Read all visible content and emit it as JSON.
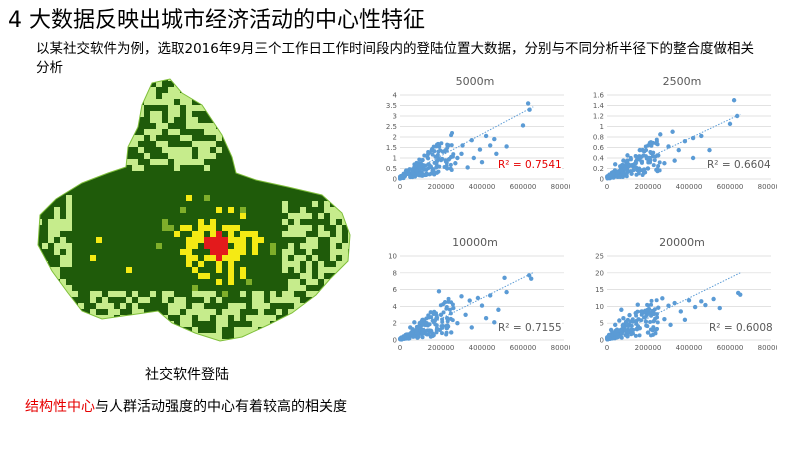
{
  "slide": {
    "title": "4 大数据反映出城市经济活动的中心性特征",
    "subtitle": "以某社交软件为例，选取2016年9月三个工作日工作时间段内的登陆位置大数据，分别与不同分析半径下的整合度做相关分析",
    "map_caption": "社交软件登陆",
    "conclusion_highlight": "结构性中心",
    "conclusion_rest": "与人群活动强度的中心有着较高的相关度"
  },
  "map": {
    "colors": {
      "dark_green": "#1f5b0a",
      "light_green": "#c6ec8c",
      "yellow": "#f5ea14",
      "red": "#e31a1c"
    }
  },
  "chart_data": [
    {
      "type": "scatter",
      "title": "5000m",
      "r2_label": "R² = 0.7541",
      "r2_color": "#e60000",
      "xlim": [
        0,
        800000
      ],
      "ylim": [
        0,
        4
      ],
      "xticks": [
        "0",
        "200000",
        "400000",
        "600000",
        "800000"
      ],
      "yticks": [
        "0",
        "0.5",
        "1",
        "1.5",
        "2",
        "2.5",
        "3",
        "3.5",
        "4"
      ],
      "trend": {
        "slope": 5.2e-06,
        "intercept": 0.06
      },
      "points": [
        [
          625000,
          3.6
        ],
        [
          632000,
          3.3
        ],
        [
          600000,
          2.55
        ],
        [
          420000,
          2.05
        ],
        [
          460000,
          1.9
        ],
        [
          305000,
          1.6
        ],
        [
          390000,
          1.4
        ],
        [
          470000,
          1.2
        ],
        [
          250000,
          1.05
        ],
        [
          360000,
          1.0
        ],
        [
          180000,
          0.85
        ],
        [
          520000,
          1.55
        ],
        [
          270000,
          0.75
        ],
        [
          150000,
          0.6
        ],
        [
          100000,
          0.5
        ],
        [
          80000,
          0.4
        ],
        [
          60000,
          0.3
        ],
        [
          40000,
          0.25
        ],
        [
          20000,
          0.15
        ],
        [
          10000,
          0.1
        ],
        [
          5000,
          0.05
        ],
        [
          120000,
          0.45
        ],
        [
          200000,
          0.9
        ],
        [
          330000,
          0.55
        ],
        [
          160000,
          0.35
        ],
        [
          90000,
          0.2
        ],
        [
          230000,
          0.5
        ],
        [
          140000,
          0.7
        ],
        [
          70000,
          0.55
        ],
        [
          30000,
          0.4
        ],
        [
          50000,
          0.1
        ],
        [
          180000,
          0.3
        ],
        [
          300000,
          1.2
        ],
        [
          210000,
          1.3
        ],
        [
          110000,
          0.9
        ],
        [
          400000,
          0.8
        ],
        [
          440000,
          1.6
        ],
        [
          350000,
          1.85
        ],
        [
          280000,
          1.0
        ],
        [
          130000,
          0.25
        ]
      ]
    },
    {
      "type": "scatter",
      "title": "2500m",
      "r2_label": "R² = 0.6604",
      "r2_color": "#595959",
      "xlim": [
        0,
        800000
      ],
      "ylim": [
        0,
        1.6
      ],
      "xticks": [
        "0",
        "200000",
        "400000",
        "600000",
        "800000"
      ],
      "yticks": [
        "0",
        "0.2",
        "0.4",
        "0.6",
        "0.8",
        "1",
        "1.2",
        "1.4",
        "1.6"
      ],
      "trend": {
        "slope": 1.85e-06,
        "intercept": 0.03
      },
      "points": [
        [
          620000,
          1.5
        ],
        [
          635000,
          1.2
        ],
        [
          600000,
          1.05
        ],
        [
          460000,
          0.82
        ],
        [
          420000,
          0.78
        ],
        [
          380000,
          0.72
        ],
        [
          300000,
          0.62
        ],
        [
          350000,
          0.55
        ],
        [
          500000,
          0.55
        ],
        [
          250000,
          0.45
        ],
        [
          200000,
          0.4
        ],
        [
          170000,
          0.33
        ],
        [
          140000,
          0.3
        ],
        [
          110000,
          0.25
        ],
        [
          90000,
          0.2
        ],
        [
          70000,
          0.16
        ],
        [
          50000,
          0.12
        ],
        [
          30000,
          0.1
        ],
        [
          15000,
          0.06
        ],
        [
          5000,
          0.03
        ],
        [
          240000,
          0.68
        ],
        [
          280000,
          0.3
        ],
        [
          160000,
          0.55
        ],
        [
          120000,
          0.1
        ],
        [
          200000,
          0.2
        ],
        [
          80000,
          0.35
        ],
        [
          320000,
          0.9
        ],
        [
          260000,
          0.85
        ],
        [
          60000,
          0.05
        ],
        [
          180000,
          0.15
        ],
        [
          420000,
          0.4
        ],
        [
          330000,
          0.35
        ],
        [
          100000,
          0.45
        ],
        [
          40000,
          0.28
        ]
      ]
    },
    {
      "type": "scatter",
      "title": "10000m",
      "r2_label": "R² = 0.7155",
      "r2_color": "#595959",
      "xlim": [
        0,
        800000
      ],
      "ylim": [
        0,
        10
      ],
      "xticks": [
        "0",
        "200000",
        "400000",
        "600000",
        "800000"
      ],
      "yticks": [
        "0",
        "2",
        "4",
        "6",
        "8",
        "10"
      ],
      "trend": {
        "slope": 1.22e-05,
        "intercept": 0.1
      },
      "points": [
        [
          630000,
          7.7
        ],
        [
          640000,
          7.3
        ],
        [
          510000,
          7.4
        ],
        [
          520000,
          5.7
        ],
        [
          440000,
          5.3
        ],
        [
          380000,
          5.0
        ],
        [
          300000,
          5.2
        ],
        [
          340000,
          4.7
        ],
        [
          260000,
          3.8
        ],
        [
          480000,
          3.6
        ],
        [
          200000,
          3.0
        ],
        [
          230000,
          2.6
        ],
        [
          160000,
          2.3
        ],
        [
          130000,
          2.0
        ],
        [
          100000,
          1.6
        ],
        [
          80000,
          1.2
        ],
        [
          60000,
          0.9
        ],
        [
          40000,
          0.6
        ],
        [
          20000,
          0.3
        ],
        [
          10000,
          0.1
        ],
        [
          280000,
          2.0
        ],
        [
          180000,
          1.2
        ],
        [
          150000,
          3.3
        ],
        [
          320000,
          3.0
        ],
        [
          420000,
          2.6
        ],
        [
          110000,
          0.8
        ],
        [
          70000,
          2.1
        ],
        [
          220000,
          4.5
        ],
        [
          350000,
          1.5
        ],
        [
          250000,
          0.9
        ],
        [
          190000,
          5.8
        ],
        [
          90000,
          0.4
        ],
        [
          140000,
          0.7
        ],
        [
          400000,
          4.1
        ],
        [
          460000,
          2.1
        ],
        [
          50000,
          1.5
        ]
      ]
    },
    {
      "type": "scatter",
      "title": "20000m",
      "r2_label": "R² = 0.6008",
      "r2_color": "#595959",
      "xlim": [
        0,
        800000
      ],
      "ylim": [
        0,
        25
      ],
      "xticks": [
        "0",
        "200000",
        "400000",
        "600000",
        "800000"
      ],
      "yticks": [
        "0",
        "5",
        "10",
        "15",
        "20",
        "25"
      ],
      "trend": {
        "slope": 3e-05,
        "intercept": 0.5
      },
      "points": [
        [
          640000,
          14.0
        ],
        [
          650000,
          13.5
        ],
        [
          520000,
          12.2
        ],
        [
          460000,
          11.5
        ],
        [
          400000,
          11.8
        ],
        [
          330000,
          11.0
        ],
        [
          300000,
          10.2
        ],
        [
          250000,
          9.6
        ],
        [
          200000,
          9.0
        ],
        [
          170000,
          8.5
        ],
        [
          140000,
          8.0
        ],
        [
          110000,
          7.4
        ],
        [
          80000,
          6.5
        ],
        [
          60000,
          5.8
        ],
        [
          40000,
          4.5
        ],
        [
          20000,
          3.0
        ],
        [
          10000,
          1.5
        ],
        [
          360000,
          8.5
        ],
        [
          430000,
          9.8
        ],
        [
          280000,
          6.2
        ],
        [
          230000,
          7.8
        ],
        [
          190000,
          5.5
        ],
        [
          120000,
          4.2
        ],
        [
          90000,
          2.8
        ],
        [
          150000,
          10.5
        ],
        [
          270000,
          12.4
        ],
        [
          480000,
          10.4
        ],
        [
          310000,
          4.5
        ],
        [
          200000,
          2.2
        ],
        [
          70000,
          9.0
        ],
        [
          380000,
          6.0
        ],
        [
          550000,
          9.5
        ],
        [
          50000,
          0.8
        ],
        [
          160000,
          3.5
        ]
      ]
    }
  ]
}
